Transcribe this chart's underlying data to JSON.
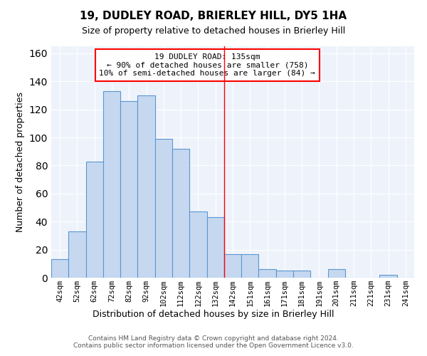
{
  "title": "19, DUDLEY ROAD, BRIERLEY HILL, DY5 1HA",
  "subtitle": "Size of property relative to detached houses in Brierley Hill",
  "xlabel": "Distribution of detached houses by size in Brierley Hill",
  "ylabel": "Number of detached properties",
  "bar_color": "#c5d8f0",
  "bar_edge_color": "#5a96d2",
  "background_color": "#eef3fb",
  "categories": [
    "42sqm",
    "52sqm",
    "62sqm",
    "72sqm",
    "82sqm",
    "92sqm",
    "102sqm",
    "112sqm",
    "122sqm",
    "132sqm",
    "142sqm",
    "151sqm",
    "161sqm",
    "171sqm",
    "181sqm",
    "191sqm",
    "201sqm",
    "211sqm",
    "221sqm",
    "231sqm",
    "241sqm"
  ],
  "values": [
    13,
    33,
    83,
    133,
    126,
    130,
    99,
    92,
    47,
    43,
    17,
    17,
    6,
    5,
    5,
    0,
    6,
    0,
    0,
    2,
    0
  ],
  "ylim": [
    0,
    165
  ],
  "yticks": [
    0,
    20,
    40,
    60,
    80,
    100,
    120,
    140,
    160
  ],
  "red_line_x": 9.5,
  "annotation_line1": "19 DUDLEY ROAD: 135sqm",
  "annotation_line2": "← 90% of detached houses are smaller (758)",
  "annotation_line3": "10% of semi-detached houses are larger (84) →",
  "footer": "Contains HM Land Registry data © Crown copyright and database right 2024.\nContains public sector information licensed under the Open Government Licence v3.0.",
  "figsize": [
    6.0,
    5.0
  ],
  "dpi": 100
}
